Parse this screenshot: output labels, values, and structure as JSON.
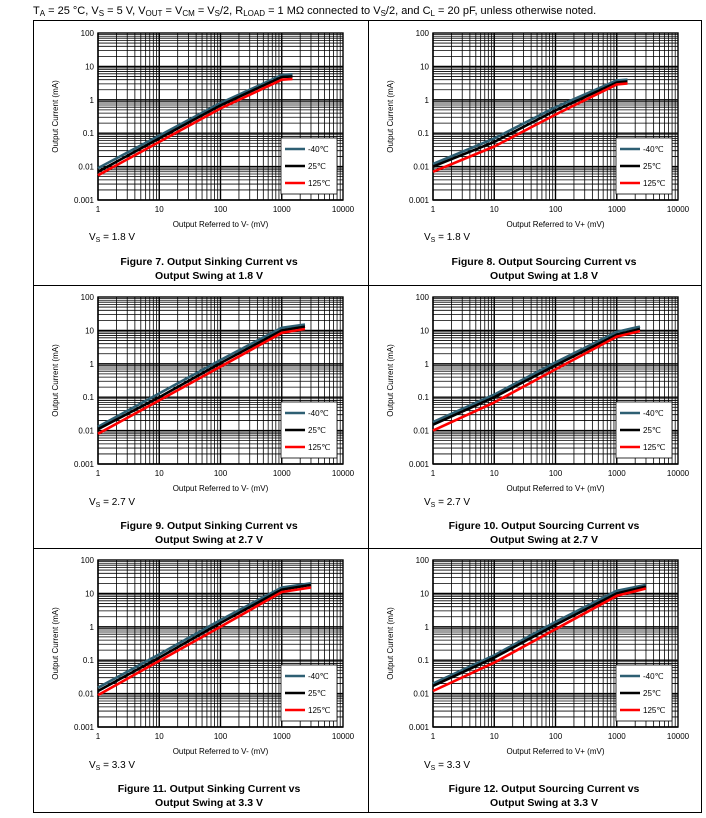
{
  "conditions": {
    "ta": "T",
    "ta_sub": "A",
    "ta_val": " = 25 °C, V",
    "vs_sub": "S",
    "vs_val": " = 5 V, V",
    "vout_sub": "OUT",
    "vout_val": " = V",
    "vcm_sub": "CM",
    "vcm_val": " = V",
    "vs2_sub": "S",
    "vs2_val": "/2, R",
    "rload_sub": "LOAD",
    "rload_val": " = 1 MΩ connected to V",
    "vs3_sub": "S",
    "vs3_val": "/2, and C",
    "cl_sub": "L",
    "cl_val": " = 20 pF, unless otherwise noted."
  },
  "chart_data": [
    {
      "type": "line",
      "figure_line1": "Figure 7. Output Sinking Current vs",
      "figure_line2": "Output Swing at 1.8 V",
      "xlabel": "Output Referred to V- (mV)",
      "ylabel": "Output Current (mA)",
      "xlim": [
        1,
        10000
      ],
      "ylim": [
        0.001,
        100
      ],
      "xscale": "log",
      "yscale": "log",
      "xticks": [
        "1",
        "10",
        "100",
        "1000",
        "10000"
      ],
      "yticks": [
        "0.001",
        "0.01",
        "0.1",
        "1",
        "10",
        "100"
      ],
      "supply_prefix": "V",
      "supply_sub": "S",
      "supply_value": " = 1.8 V",
      "legend": [
        "-40℃",
        "25℃",
        "125℃"
      ],
      "legend_position": "lower-right",
      "series": [
        {
          "name": "-40℃",
          "color": "#2e5f73",
          "points": [
            [
              1,
              0.009
            ],
            [
              10,
              0.085
            ],
            [
              100,
              0.8
            ],
            [
              1000,
              5.5
            ],
            [
              1500,
              5.8
            ]
          ]
        },
        {
          "name": "25℃",
          "color": "#000000",
          "points": [
            [
              1,
              0.007
            ],
            [
              10,
              0.07
            ],
            [
              100,
              0.68
            ],
            [
              1000,
              4.8
            ],
            [
              1500,
              5.0
            ]
          ]
        },
        {
          "name": "125℃",
          "color": "#ff0000",
          "points": [
            [
              1,
              0.0055
            ],
            [
              10,
              0.055
            ],
            [
              100,
              0.55
            ],
            [
              1000,
              4.0
            ],
            [
              1500,
              4.2
            ]
          ]
        }
      ]
    },
    {
      "type": "line",
      "figure_line1": "Figure 8. Output Sourcing Current vs",
      "figure_line2": "Output Swing at 1.8 V",
      "xlabel": "Output Referred to V+ (mV)",
      "ylabel": "Output Current (mA)",
      "xlim": [
        1,
        10000
      ],
      "ylim": [
        0.001,
        100
      ],
      "xscale": "log",
      "yscale": "log",
      "xticks": [
        "1",
        "10",
        "100",
        "1000",
        "10000"
      ],
      "yticks": [
        "0.001",
        "0.01",
        "0.1",
        "1",
        "10",
        "100"
      ],
      "supply_prefix": "V",
      "supply_sub": "S",
      "supply_value": " = 1.8 V",
      "legend": [
        "-40℃",
        "25℃",
        "125℃"
      ],
      "legend_position": "lower-right",
      "series": [
        {
          "name": "-40℃",
          "color": "#2e5f73",
          "points": [
            [
              1,
              0.012
            ],
            [
              10,
              0.07
            ],
            [
              100,
              0.6
            ],
            [
              1000,
              3.8
            ],
            [
              1500,
              4.0
            ]
          ]
        },
        {
          "name": "25℃",
          "color": "#000000",
          "points": [
            [
              1,
              0.01
            ],
            [
              10,
              0.055
            ],
            [
              100,
              0.48
            ],
            [
              1000,
              3.3
            ],
            [
              1500,
              3.5
            ]
          ]
        },
        {
          "name": "125℃",
          "color": "#ff0000",
          "points": [
            [
              1,
              0.007
            ],
            [
              10,
              0.04
            ],
            [
              100,
              0.36
            ],
            [
              1000,
              2.9
            ],
            [
              1500,
              3.1
            ]
          ]
        }
      ]
    },
    {
      "type": "line",
      "figure_line1": "Figure 9. Output Sinking Current vs",
      "figure_line2": "Output Swing at 2.7 V",
      "xlabel": "Output Referred to V- (mV)",
      "ylabel": "Output Current (mA)",
      "xlim": [
        1,
        10000
      ],
      "ylim": [
        0.001,
        100
      ],
      "xscale": "log",
      "yscale": "log",
      "xticks": [
        "1",
        "10",
        "100",
        "1000",
        "10000"
      ],
      "yticks": [
        "0.001",
        "0.01",
        "0.1",
        "1",
        "10",
        "100"
      ],
      "supply_prefix": "V",
      "supply_sub": "S",
      "supply_value": " = 2.7 V",
      "legend": [
        "-40℃",
        "25℃",
        "125℃"
      ],
      "legend_position": "lower-right",
      "series": [
        {
          "name": "-40℃",
          "color": "#2e5f73",
          "points": [
            [
              1,
              0.013
            ],
            [
              10,
              0.13
            ],
            [
              100,
              1.3
            ],
            [
              1000,
              12
            ],
            [
              2400,
              15
            ]
          ]
        },
        {
          "name": "25℃",
          "color": "#000000",
          "points": [
            [
              1,
              0.011
            ],
            [
              10,
              0.1
            ],
            [
              100,
              1.05
            ],
            [
              1000,
              10
            ],
            [
              2400,
              13
            ]
          ]
        },
        {
          "name": "125℃",
          "color": "#ff0000",
          "points": [
            [
              1,
              0.008
            ],
            [
              10,
              0.08
            ],
            [
              100,
              0.82
            ],
            [
              1000,
              8.5
            ],
            [
              2400,
              11
            ]
          ]
        }
      ]
    },
    {
      "type": "line",
      "figure_line1": "Figure 10. Output Sourcing Current vs",
      "figure_line2": "Output Swing at 2.7 V",
      "xlabel": "Output Referred to V+ (mV)",
      "ylabel": "Output Current (mA)",
      "xlim": [
        1,
        10000
      ],
      "ylim": [
        0.001,
        100
      ],
      "xscale": "log",
      "yscale": "log",
      "xticks": [
        "1",
        "10",
        "100",
        "1000",
        "10000"
      ],
      "yticks": [
        "0.001",
        "0.01",
        "0.1",
        "1",
        "10",
        "100"
      ],
      "supply_prefix": "V",
      "supply_sub": "S",
      "supply_value": " = 2.7 V",
      "legend": [
        "-40℃",
        "25℃",
        "125℃"
      ],
      "legend_position": "lower-right",
      "series": [
        {
          "name": "-40℃",
          "color": "#2e5f73",
          "points": [
            [
              1,
              0.018
            ],
            [
              10,
              0.12
            ],
            [
              100,
              1.1
            ],
            [
              1000,
              9
            ],
            [
              2400,
              13
            ]
          ]
        },
        {
          "name": "25℃",
          "color": "#000000",
          "points": [
            [
              1,
              0.015
            ],
            [
              10,
              0.1
            ],
            [
              100,
              0.9
            ],
            [
              1000,
              7.5
            ],
            [
              2400,
              11
            ]
          ]
        },
        {
          "name": "125℃",
          "color": "#ff0000",
          "points": [
            [
              1,
              0.01
            ],
            [
              10,
              0.07
            ],
            [
              100,
              0.68
            ],
            [
              1000,
              6.5
            ],
            [
              2400,
              9.5
            ]
          ]
        }
      ]
    },
    {
      "type": "line",
      "figure_line1": "Figure 11. Output Sinking Current vs",
      "figure_line2": "Output Swing at 3.3 V",
      "xlabel": "Output Referred to V- (mV)",
      "ylabel": "Output Current (mA)",
      "xlim": [
        1,
        10000
      ],
      "ylim": [
        0.001,
        100
      ],
      "xscale": "log",
      "yscale": "log",
      "xticks": [
        "1",
        "10",
        "100",
        "1000",
        "10000"
      ],
      "yticks": [
        "0.001",
        "0.01",
        "0.1",
        "1",
        "10",
        "100"
      ],
      "supply_prefix": "V",
      "supply_sub": "S",
      "supply_value": " = 3.3 V",
      "legend": [
        "-40℃",
        "25℃",
        "125℃"
      ],
      "legend_position": "lower-right",
      "series": [
        {
          "name": "-40℃",
          "color": "#2e5f73",
          "points": [
            [
              1,
              0.015
            ],
            [
              10,
              0.15
            ],
            [
              100,
              1.6
            ],
            [
              1000,
              15
            ],
            [
              3000,
              20
            ]
          ]
        },
        {
          "name": "25℃",
          "color": "#000000",
          "points": [
            [
              1,
              0.012
            ],
            [
              10,
              0.12
            ],
            [
              100,
              1.3
            ],
            [
              1000,
              13
            ],
            [
              3000,
              18
            ]
          ]
        },
        {
          "name": "125℃",
          "color": "#ff0000",
          "points": [
            [
              1,
              0.009
            ],
            [
              10,
              0.095
            ],
            [
              100,
              1.0
            ],
            [
              1000,
              11
            ],
            [
              3000,
              15
            ]
          ]
        }
      ]
    },
    {
      "type": "line",
      "figure_line1": "Figure 12. Output Sourcing Current vs",
      "figure_line2": "Output Swing at 3.3 V",
      "xlabel": "Output Referred to V+ (mV)",
      "ylabel": "Output Current (mA)",
      "xlim": [
        1,
        10000
      ],
      "ylim": [
        0.001,
        100
      ],
      "xscale": "log",
      "yscale": "log",
      "xticks": [
        "1",
        "10",
        "100",
        "1000",
        "10000"
      ],
      "yticks": [
        "0.001",
        "0.01",
        "0.1",
        "1",
        "10",
        "100"
      ],
      "supply_prefix": "V",
      "supply_sub": "S",
      "supply_value": " = 3.3 V",
      "legend": [
        "-40℃",
        "25℃",
        "125℃"
      ],
      "legend_position": "lower-right",
      "series": [
        {
          "name": "-40℃",
          "color": "#2e5f73",
          "points": [
            [
              1,
              0.02
            ],
            [
              10,
              0.14
            ],
            [
              100,
              1.4
            ],
            [
              1000,
              12
            ],
            [
              3000,
              18
            ]
          ]
        },
        {
          "name": "25℃",
          "color": "#000000",
          "points": [
            [
              1,
              0.017
            ],
            [
              10,
              0.12
            ],
            [
              100,
              1.15
            ],
            [
              1000,
              10
            ],
            [
              3000,
              16
            ]
          ]
        },
        {
          "name": "125℃",
          "color": "#ff0000",
          "points": [
            [
              1,
              0.012
            ],
            [
              10,
              0.085
            ],
            [
              100,
              0.85
            ],
            [
              1000,
              8.5
            ],
            [
              3000,
              14
            ]
          ]
        }
      ]
    }
  ]
}
